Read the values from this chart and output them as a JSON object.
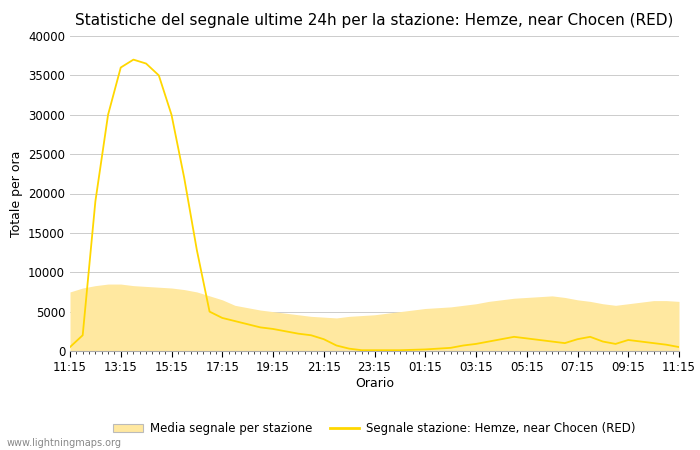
{
  "title": "Statistiche del segnale ultime 24h per la stazione: Hemze, near Chocen (RED)",
  "xlabel": "Orario",
  "ylabel": "Totale per ora",
  "watermark": "www.lightningmaps.org",
  "legend_fill_label": "Media segnale per stazione",
  "legend_line_label": "Segnale stazione: Hemze, near Chocen (RED)",
  "x_ticks": [
    "11:15",
    "13:15",
    "15:15",
    "17:15",
    "19:15",
    "21:15",
    "23:15",
    "01:15",
    "03:15",
    "05:15",
    "07:15",
    "09:15",
    "11:15"
  ],
  "ylim": [
    0,
    40000
  ],
  "yticks": [
    0,
    5000,
    10000,
    15000,
    20000,
    25000,
    30000,
    35000,
    40000
  ],
  "line_color": "#FFD700",
  "fill_color": "#FFE8A0",
  "background_color": "#FFFFFF",
  "grid_color": "#CCCCCC",
  "title_fontsize": 11,
  "axis_fontsize": 9,
  "tick_fontsize": 8.5,
  "signal_x": [
    0,
    1,
    2,
    3,
    4,
    5,
    6,
    7,
    8,
    9,
    10,
    11,
    12,
    13,
    14,
    15,
    16,
    17,
    18,
    19,
    20,
    21,
    22,
    23,
    24,
    25,
    26,
    27,
    28,
    29,
    30,
    31,
    32,
    33,
    34,
    35,
    36,
    37,
    38,
    39,
    40,
    41,
    42,
    43,
    44,
    45,
    46,
    47,
    48
  ],
  "signal_y": [
    500,
    2000,
    19000,
    30000,
    36000,
    37000,
    36500,
    35000,
    30000,
    22000,
    12800,
    5000,
    4200,
    3800,
    3400,
    3000,
    2800,
    2500,
    2200,
    2000,
    1500,
    700,
    300,
    100,
    100,
    100,
    100,
    150,
    200,
    300,
    400,
    700,
    900,
    1200,
    1500,
    1800,
    1600,
    1400,
    1200,
    1000,
    1500,
    1800,
    1200,
    900,
    1400,
    1200,
    1000,
    800,
    500
  ],
  "fill_x": [
    0,
    1,
    2,
    3,
    4,
    5,
    6,
    7,
    8,
    9,
    10,
    11,
    12,
    13,
    14,
    15,
    16,
    17,
    18,
    19,
    20,
    21,
    22,
    23,
    24,
    25,
    26,
    27,
    28,
    29,
    30,
    31,
    32,
    33,
    34,
    35,
    36,
    37,
    38,
    39,
    40,
    41,
    42,
    43,
    44,
    45,
    46,
    47,
    48
  ],
  "fill_y": [
    7500,
    8000,
    8300,
    8500,
    8500,
    8300,
    8200,
    8100,
    8000,
    7800,
    7500,
    7000,
    6500,
    5800,
    5500,
    5200,
    5000,
    4800,
    4600,
    4400,
    4300,
    4200,
    4400,
    4500,
    4600,
    4800,
    5000,
    5200,
    5400,
    5500,
    5600,
    5800,
    6000,
    6300,
    6500,
    6700,
    6800,
    6900,
    7000,
    6800,
    6500,
    6300,
    6000,
    5800,
    6000,
    6200,
    6400,
    6400,
    6300
  ],
  "n_points": 49
}
